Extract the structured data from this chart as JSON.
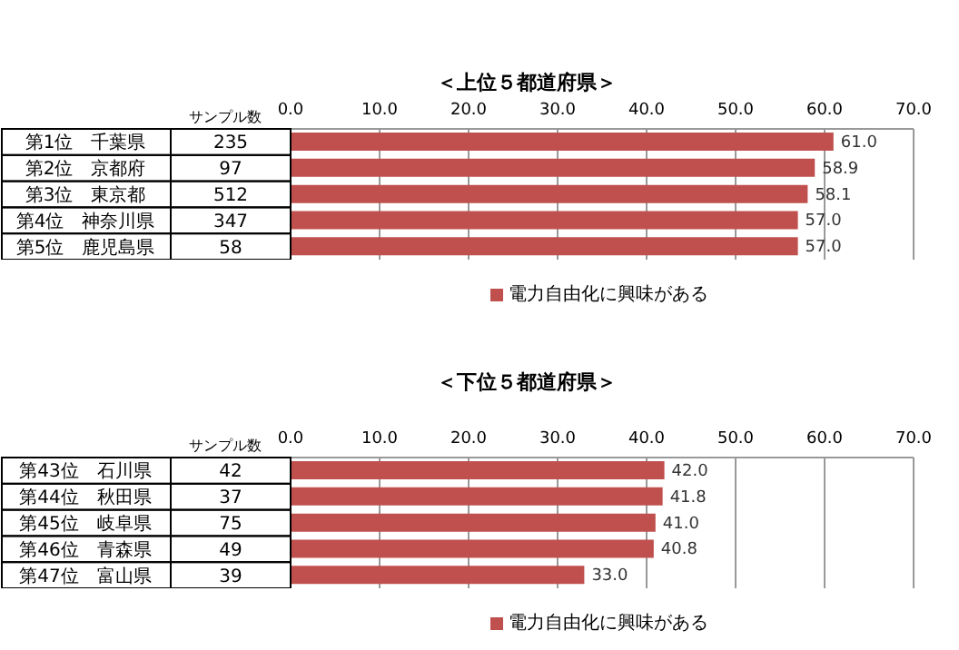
{
  "chart_data": [
    {
      "type": "bar",
      "orientation": "horizontal",
      "title": "＜上位５都道府県＞",
      "categories": [
        "第1位　千葉県",
        "第2位　京都府",
        "第3位　東京都",
        "第4位　神奈川県",
        "第5位　鹿児島県"
      ],
      "series": [
        {
          "name": "電力自由化に興味がある",
          "color": "#c0504d",
          "values": [
            61.0,
            58.9,
            58.1,
            57.0,
            57.0
          ],
          "value_labels": [
            "61.0",
            "58.9",
            "58.1",
            "57.0",
            "57.0"
          ]
        }
      ],
      "annotations": [
        "サンプル数",
        "235",
        "97",
        "512",
        "347",
        "58"
      ],
      "xlim": [
        0,
        70
      ],
      "xticks": [
        {
          "value": 0,
          "label": "0.0"
        },
        {
          "value": 10,
          "label": "10.0"
        },
        {
          "value": 20,
          "label": "20.0"
        },
        {
          "value": 30,
          "label": "30.0"
        },
        {
          "value": 40,
          "label": "40.0"
        },
        {
          "value": 50,
          "label": "50.0"
        },
        {
          "value": 60,
          "label": "60.0"
        },
        {
          "value": 70,
          "label": "70.0"
        }
      ],
      "grid": "x",
      "legend": "bottom"
    },
    {
      "type": "bar",
      "orientation": "horizontal",
      "title": "＜下位５都道府県＞",
      "categories": [
        "第43位　石川県",
        "第44位　秋田県",
        "第45位　岐阜県",
        "第46位　青森県",
        "第47位　富山県"
      ],
      "series": [
        {
          "name": "電力自由化に興味がある",
          "color": "#c0504d",
          "values": [
            42.0,
            41.8,
            41.0,
            40.8,
            33.0
          ],
          "value_labels": [
            "42.0",
            "41.8",
            "41.0",
            "40.8",
            "33.0"
          ]
        }
      ],
      "annotations": [
        "サンプル数",
        "42",
        "37",
        "75",
        "49",
        "39"
      ],
      "xlim": [
        0,
        70
      ],
      "xticks": [
        {
          "value": 0,
          "label": "0.0"
        },
        {
          "value": 10,
          "label": "10.0"
        },
        {
          "value": 20,
          "label": "20.0"
        },
        {
          "value": 30,
          "label": "30.0"
        },
        {
          "value": 40,
          "label": "40.0"
        },
        {
          "value": 50,
          "label": "50.0"
        },
        {
          "value": 60,
          "label": "60.0"
        },
        {
          "value": 70,
          "label": "70.0"
        }
      ],
      "grid": "x",
      "legend": "bottom"
    }
  ]
}
